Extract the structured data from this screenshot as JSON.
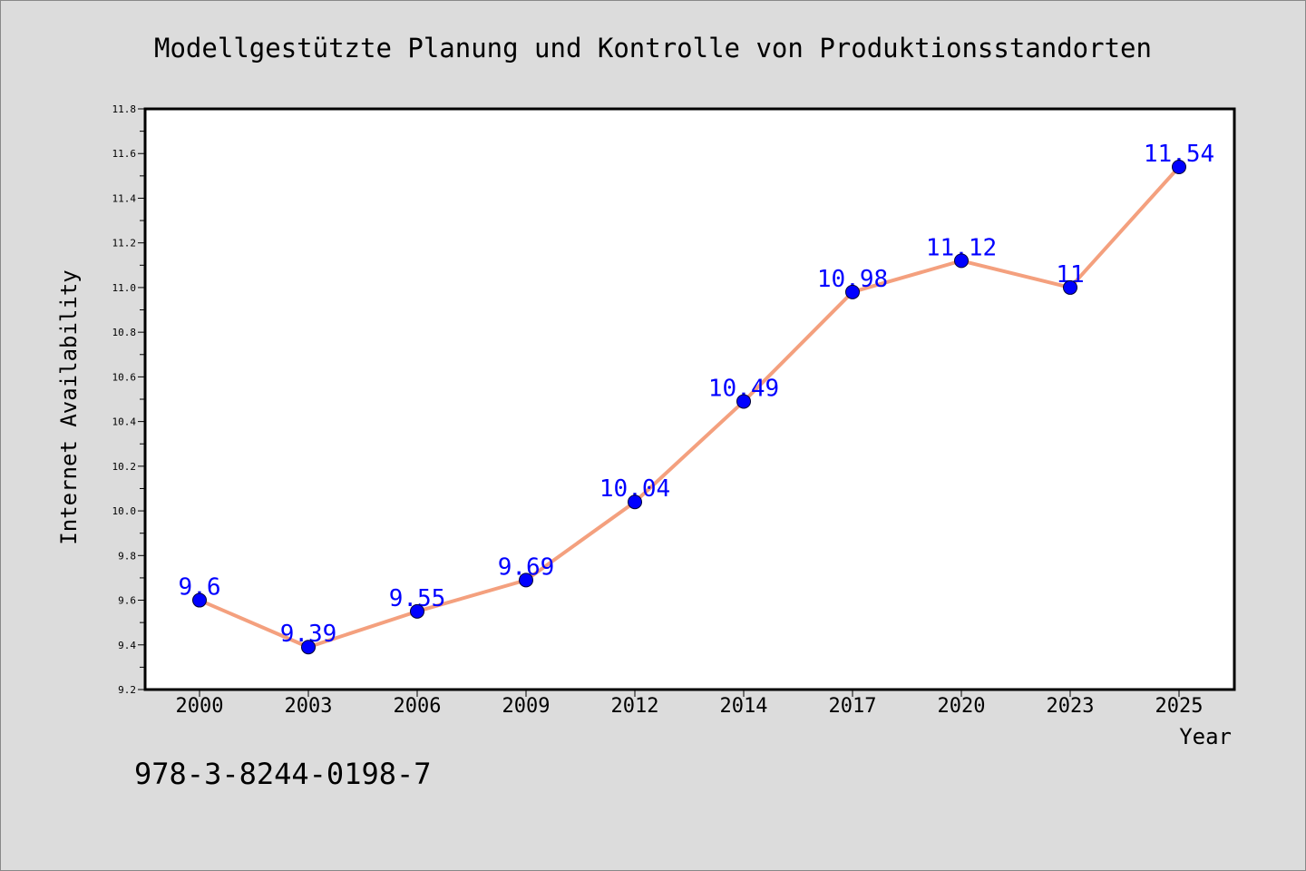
{
  "chart_data": {
    "type": "line",
    "title": "Modellgestützte Planung und Kontrolle von Produktionsstandorten",
    "xlabel": "Year",
    "ylabel": "Internet Availability",
    "categories": [
      "2000",
      "2003",
      "2006",
      "2009",
      "2012",
      "2014",
      "2017",
      "2020",
      "2023",
      "2025"
    ],
    "series": [
      {
        "values": [
          9.6,
          9.39,
          9.55,
          9.69,
          10.04,
          10.49,
          10.98,
          11.12,
          11,
          11.54
        ],
        "data_labels": [
          "9.6",
          "9.39",
          "9.55",
          "9.69",
          "10.04",
          "10.49",
          "10.98",
          "11.12",
          "11",
          "11.54"
        ]
      }
    ],
    "ylim": [
      9.2,
      11.8
    ],
    "yticks": [
      "9.2",
      "9.4",
      "9.6",
      "9.8",
      "10.0",
      "10.2",
      "10.4",
      "10.6",
      "10.8",
      "11.0",
      "11.2",
      "11.4",
      "11.6",
      "11.8"
    ],
    "grid": false,
    "colors": {
      "line": "#f4a07e",
      "marker": "#0000ff",
      "label": "#0000ff",
      "plot_background": "#ffffff",
      "figure_background": "#dcdcdc"
    }
  },
  "footer": {
    "isbn": "978-3-8244-0198-7"
  }
}
